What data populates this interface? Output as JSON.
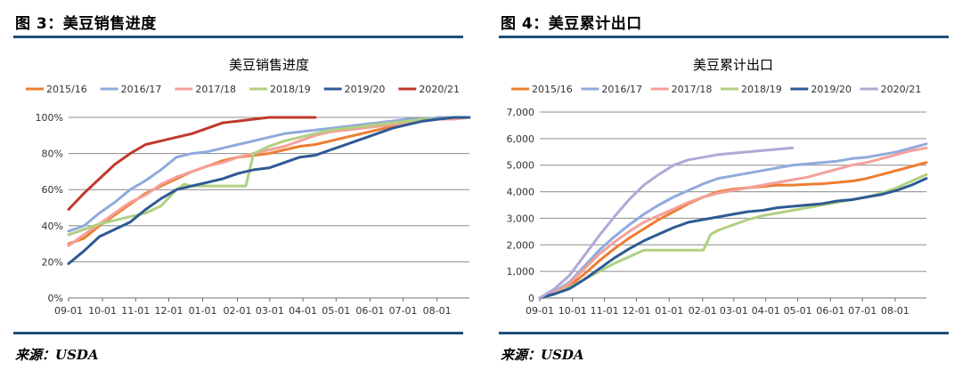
{
  "left": {
    "figure_label": "图 3：美豆销售进度",
    "source": "来源：USDA"
  },
  "right": {
    "figure_label": "图 4：美豆累计出口",
    "source": "来源：USDA"
  },
  "colors": {
    "accent_rule": "#1f4e79",
    "grid": "#8c8c8c"
  },
  "chart_data": [
    {
      "type": "line",
      "title": "美豆销售进度",
      "xlabel": "",
      "ylabel": "",
      "ylim": [
        0,
        100
      ],
      "xlim": [
        0,
        52
      ],
      "y_tick_values": [
        0,
        20,
        40,
        60,
        80,
        100
      ],
      "y_tick_labels": [
        "0%",
        "20%",
        "40%",
        "60%",
        "80%",
        "100%"
      ],
      "x_tick_labels": [
        "09-01",
        "10-01",
        "11-01",
        "12-01",
        "01-01",
        "02-01",
        "03-01",
        "04-01",
        "05-01",
        "06-01",
        "07-01",
        "08-01"
      ],
      "x_tick_weeks": [
        0,
        4.4,
        8.7,
        13,
        17.4,
        21.9,
        26.1,
        30.4,
        34.7,
        39.1,
        43.4,
        47.8
      ],
      "grid": "horizontal",
      "legend_position": "top",
      "series": [
        {
          "name": "2015/16",
          "color": "#ed7d31",
          "x": [
            0,
            2,
            4,
            6,
            8,
            10,
            12,
            14,
            16,
            18,
            20,
            22,
            24,
            26,
            28,
            30,
            32,
            34,
            36,
            38,
            40,
            42,
            44,
            46,
            48,
            50,
            52
          ],
          "y": [
            30,
            33,
            40,
            46,
            52,
            58,
            62,
            66,
            70,
            73,
            76,
            78,
            79,
            80,
            82,
            84,
            85,
            87,
            89,
            91,
            93,
            95,
            97,
            98,
            100,
            100,
            100
          ]
        },
        {
          "name": "2016/17",
          "color": "#8faadc",
          "x": [
            0,
            2,
            4,
            6,
            8,
            10,
            12,
            14,
            16,
            18,
            20,
            22,
            24,
            26,
            28,
            30,
            32,
            34,
            36,
            38,
            40,
            42,
            44,
            46,
            48,
            50,
            52
          ],
          "y": [
            37,
            40,
            47,
            53,
            60,
            65,
            71,
            78,
            80,
            81,
            83,
            85,
            87,
            89,
            91,
            92,
            93,
            94,
            95,
            96,
            97,
            98,
            99,
            99,
            100,
            100,
            100
          ]
        },
        {
          "name": "2017/18",
          "color": "#f4a09a",
          "x": [
            0,
            2,
            4,
            6,
            8,
            10,
            12,
            14,
            16,
            18,
            20,
            22,
            24,
            26,
            28,
            30,
            32,
            34,
            36,
            38,
            40,
            42,
            44,
            46,
            48,
            50,
            52
          ],
          "y": [
            29,
            35,
            41,
            47,
            53,
            57,
            63,
            67,
            70,
            73,
            75,
            78,
            80,
            82,
            84,
            87,
            90,
            92,
            93,
            94,
            95,
            96,
            97,
            98,
            99,
            99,
            100
          ]
        },
        {
          "name": "2018/19",
          "color": "#b0d080",
          "x": [
            0,
            2,
            4,
            6,
            8,
            10,
            12,
            14,
            15,
            16,
            18,
            20,
            22,
            23,
            24,
            26,
            28,
            30,
            32,
            34,
            36,
            38,
            40,
            42,
            44,
            46,
            48,
            50,
            52
          ],
          "y": [
            35,
            38,
            41,
            43,
            45,
            47,
            51,
            60,
            63,
            62,
            62,
            62,
            62,
            62,
            80,
            84,
            87,
            89,
            91,
            93,
            94,
            95,
            96,
            97,
            98,
            99,
            99,
            100,
            100
          ]
        },
        {
          "name": "2019/20",
          "color": "#2e5a94",
          "x": [
            0,
            2,
            4,
            6,
            8,
            10,
            12,
            14,
            16,
            18,
            20,
            22,
            24,
            26,
            28,
            30,
            32,
            34,
            36,
            38,
            40,
            42,
            44,
            46,
            48,
            50,
            52
          ],
          "y": [
            19,
            26,
            34,
            38,
            42,
            49,
            55,
            60,
            62,
            64,
            66,
            69,
            71,
            72,
            75,
            78,
            79,
            82,
            85,
            88,
            91,
            94,
            96,
            98,
            99,
            100,
            100
          ]
        },
        {
          "name": "2020/21",
          "color": "#c0392b",
          "x": [
            0,
            2,
            4,
            6,
            8,
            10,
            12,
            14,
            16,
            18,
            20,
            22,
            24,
            26,
            28,
            30,
            32
          ],
          "y": [
            49,
            58,
            66,
            74,
            80,
            85,
            87,
            89,
            91,
            94,
            97,
            98,
            99,
            100,
            100,
            100,
            100
          ]
        }
      ]
    },
    {
      "type": "line",
      "title": "美豆累计出口",
      "xlabel": "",
      "ylabel": "",
      "ylim": [
        0,
        7000
      ],
      "xlim": [
        0,
        52
      ],
      "y_tick_values": [
        0,
        1000,
        2000,
        3000,
        4000,
        5000,
        6000,
        7000
      ],
      "y_tick_labels": [
        "0",
        "1,000",
        "2,000",
        "3,000",
        "4,000",
        "5,000",
        "6,000",
        "7,000"
      ],
      "x_tick_labels": [
        "09-01",
        "10-01",
        "11-01",
        "12-01",
        "01-01",
        "02-01",
        "03-01",
        "04-01",
        "05-01",
        "06-01",
        "07-01",
        "08-01"
      ],
      "x_tick_weeks": [
        0,
        4.4,
        8.7,
        13,
        17.4,
        21.9,
        26.1,
        30.4,
        34.7,
        39.1,
        43.4,
        47.8
      ],
      "grid": "horizontal",
      "legend_position": "top",
      "series": [
        {
          "name": "2015/16",
          "color": "#ed7d31",
          "x": [
            0,
            2,
            4,
            6,
            8,
            10,
            12,
            14,
            16,
            18,
            20,
            22,
            24,
            26,
            28,
            30,
            32,
            34,
            36,
            38,
            40,
            42,
            44,
            46,
            48,
            50,
            52
          ],
          "y": [
            0,
            150,
            450,
            900,
            1400,
            1850,
            2250,
            2600,
            2950,
            3250,
            3550,
            3800,
            4000,
            4100,
            4150,
            4200,
            4250,
            4250,
            4280,
            4300,
            4350,
            4400,
            4500,
            4650,
            4800,
            4950,
            5100
          ]
        },
        {
          "name": "2016/17",
          "color": "#8faadc",
          "x": [
            0,
            2,
            4,
            6,
            8,
            10,
            12,
            14,
            16,
            18,
            20,
            22,
            24,
            26,
            28,
            30,
            32,
            34,
            36,
            38,
            40,
            42,
            44,
            46,
            48,
            50,
            52
          ],
          "y": [
            0,
            250,
            600,
            1200,
            1800,
            2300,
            2750,
            3150,
            3500,
            3800,
            4050,
            4300,
            4500,
            4600,
            4700,
            4800,
            4900,
            5000,
            5050,
            5100,
            5150,
            5250,
            5300,
            5400,
            5500,
            5650,
            5800
          ]
        },
        {
          "name": "2017/18",
          "color": "#f4a09a",
          "x": [
            0,
            2,
            4,
            6,
            8,
            10,
            12,
            14,
            16,
            18,
            20,
            22,
            24,
            26,
            28,
            30,
            32,
            34,
            36,
            38,
            40,
            42,
            44,
            46,
            48,
            50,
            52
          ],
          "y": [
            0,
            200,
            550,
            1100,
            1650,
            2100,
            2500,
            2850,
            3100,
            3350,
            3600,
            3800,
            3950,
            4050,
            4150,
            4250,
            4350,
            4450,
            4550,
            4700,
            4850,
            5000,
            5100,
            5250,
            5400,
            5550,
            5650
          ]
        },
        {
          "name": "2018/19",
          "color": "#b0d080",
          "x": [
            0,
            2,
            4,
            6,
            8,
            10,
            12,
            14,
            16,
            18,
            19,
            20,
            22,
            23,
            24,
            26,
            28,
            30,
            32,
            34,
            36,
            38,
            40,
            42,
            44,
            46,
            48,
            50,
            52
          ],
          "y": [
            0,
            150,
            400,
            700,
            1000,
            1300,
            1550,
            1800,
            1800,
            1800,
            1800,
            1800,
            1800,
            2400,
            2550,
            2750,
            2950,
            3100,
            3200,
            3300,
            3400,
            3500,
            3600,
            3700,
            3800,
            3950,
            4150,
            4400,
            4650
          ]
        },
        {
          "name": "2019/20",
          "color": "#2e5a94",
          "x": [
            0,
            2,
            4,
            6,
            8,
            10,
            12,
            14,
            16,
            18,
            20,
            22,
            24,
            26,
            28,
            30,
            32,
            34,
            36,
            38,
            40,
            42,
            44,
            46,
            48,
            50,
            52
          ],
          "y": [
            0,
            150,
            350,
            700,
            1100,
            1500,
            1850,
            2150,
            2400,
            2650,
            2850,
            2950,
            3050,
            3150,
            3250,
            3300,
            3400,
            3450,
            3500,
            3550,
            3650,
            3700,
            3800,
            3900,
            4050,
            4250,
            4500
          ]
        },
        {
          "name": "2020/21",
          "color": "#b4a7d6",
          "x": [
            0,
            2,
            4,
            6,
            8,
            10,
            12,
            14,
            16,
            18,
            20,
            22,
            24,
            26,
            28,
            30,
            32,
            34
          ],
          "y": [
            0,
            350,
            850,
            1600,
            2350,
            3050,
            3700,
            4250,
            4650,
            5000,
            5200,
            5300,
            5400,
            5450,
            5500,
            5550,
            5600,
            5650
          ]
        }
      ]
    }
  ]
}
